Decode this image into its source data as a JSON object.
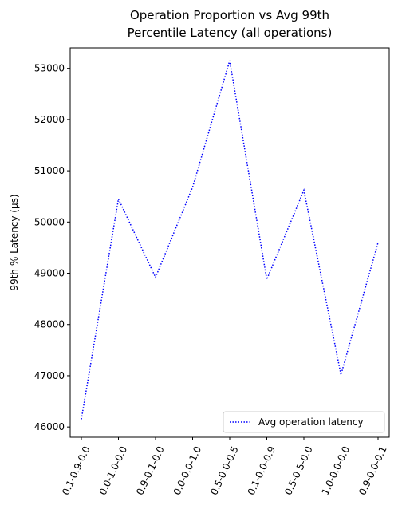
{
  "chart_data": {
    "type": "line",
    "title_lines": [
      "Operation Proportion vs Avg 99th",
      "Percentile Latency (all operations)"
    ],
    "xlabel": "",
    "ylabel": "99th % Latency (µs)",
    "categories": [
      "0.1-0.9-0.0",
      "0.0-1.0-0.0",
      "0.9-0.1-0.0",
      "0.0-0.0-1.0",
      "0.5-0.0-0.5",
      "0.1-0.0-0.9",
      "0.5-0.5-0.0",
      "1.0-0.0-0.0",
      "0.9-0.0-0.1"
    ],
    "ylim": [
      45800,
      53400
    ],
    "yticks": [
      46000,
      47000,
      48000,
      49000,
      50000,
      51000,
      52000,
      53000
    ],
    "grid": false,
    "legend_position": "lower right",
    "series": [
      {
        "name": "Avg operation latency",
        "color": "#0000ff",
        "line_style": "dotted",
        "values": [
          46150,
          50450,
          48920,
          50680,
          53150,
          48880,
          50620,
          47020,
          49600
        ]
      }
    ]
  }
}
